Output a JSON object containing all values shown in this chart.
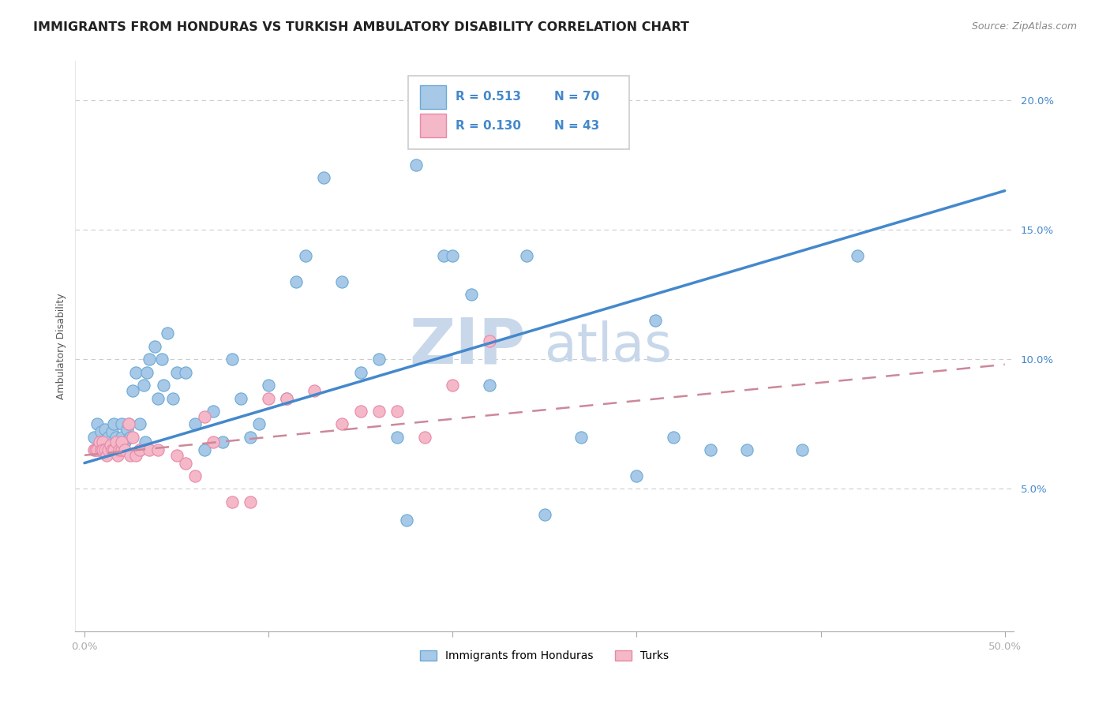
{
  "title": "IMMIGRANTS FROM HONDURAS VS TURKISH AMBULATORY DISABILITY CORRELATION CHART",
  "source": "Source: ZipAtlas.com",
  "ylabel": "Ambulatory Disability",
  "xlim": [
    -0.005,
    0.505
  ],
  "ylim": [
    -0.005,
    0.215
  ],
  "xticks": [
    0.0,
    0.1,
    0.2,
    0.3,
    0.4,
    0.5
  ],
  "xticklabels": [
    "0.0%",
    "",
    "",
    "",
    "",
    "50.0%"
  ],
  "yticks": [
    0.05,
    0.1,
    0.15,
    0.2
  ],
  "yticklabels": [
    "5.0%",
    "10.0%",
    "15.0%",
    "20.0%"
  ],
  "legend_r1": "R = 0.513",
  "legend_n1": "N = 70",
  "legend_r2": "R = 0.130",
  "legend_n2": "N = 43",
  "color_blue": "#a8c8e8",
  "color_blue_edge": "#6aaad4",
  "color_pink": "#f4b8c8",
  "color_pink_edge": "#e888a8",
  "color_blue_line": "#4488cc",
  "color_pink_line": "#cc8899",
  "color_tick_label": "#4488cc",
  "watermark": "ZIPatlas",
  "watermark_color": "#c8d8ea",
  "blue_scatter_x": [
    0.005,
    0.007,
    0.008,
    0.009,
    0.01,
    0.011,
    0.012,
    0.013,
    0.015,
    0.015,
    0.016,
    0.017,
    0.018,
    0.019,
    0.02,
    0.02,
    0.021,
    0.022,
    0.023,
    0.024,
    0.025,
    0.026,
    0.028,
    0.03,
    0.03,
    0.032,
    0.033,
    0.034,
    0.035,
    0.038,
    0.04,
    0.042,
    0.043,
    0.045,
    0.048,
    0.05,
    0.055,
    0.06,
    0.065,
    0.07,
    0.075,
    0.08,
    0.085,
    0.09,
    0.095,
    0.1,
    0.11,
    0.115,
    0.12,
    0.13,
    0.14,
    0.15,
    0.16,
    0.17,
    0.175,
    0.18,
    0.195,
    0.2,
    0.21,
    0.22,
    0.24,
    0.25,
    0.27,
    0.3,
    0.31,
    0.32,
    0.34,
    0.36,
    0.39,
    0.42
  ],
  "blue_scatter_y": [
    0.07,
    0.075,
    0.065,
    0.072,
    0.068,
    0.073,
    0.065,
    0.07,
    0.065,
    0.072,
    0.075,
    0.07,
    0.068,
    0.065,
    0.07,
    0.075,
    0.065,
    0.068,
    0.073,
    0.075,
    0.07,
    0.088,
    0.095,
    0.065,
    0.075,
    0.09,
    0.068,
    0.095,
    0.1,
    0.105,
    0.085,
    0.1,
    0.09,
    0.11,
    0.085,
    0.095,
    0.095,
    0.075,
    0.065,
    0.08,
    0.068,
    0.1,
    0.085,
    0.07,
    0.075,
    0.09,
    0.085,
    0.13,
    0.14,
    0.17,
    0.13,
    0.095,
    0.1,
    0.07,
    0.038,
    0.175,
    0.14,
    0.14,
    0.125,
    0.09,
    0.14,
    0.04,
    0.07,
    0.055,
    0.115,
    0.07,
    0.065,
    0.065,
    0.065,
    0.14
  ],
  "pink_scatter_x": [
    0.005,
    0.006,
    0.007,
    0.008,
    0.009,
    0.01,
    0.01,
    0.011,
    0.012,
    0.013,
    0.014,
    0.015,
    0.016,
    0.017,
    0.018,
    0.019,
    0.02,
    0.02,
    0.022,
    0.024,
    0.025,
    0.026,
    0.028,
    0.03,
    0.035,
    0.04,
    0.05,
    0.055,
    0.06,
    0.065,
    0.07,
    0.08,
    0.09,
    0.1,
    0.11,
    0.125,
    0.14,
    0.15,
    0.16,
    0.17,
    0.185,
    0.2,
    0.22
  ],
  "pink_scatter_y": [
    0.065,
    0.065,
    0.065,
    0.068,
    0.065,
    0.068,
    0.065,
    0.065,
    0.063,
    0.065,
    0.067,
    0.065,
    0.065,
    0.068,
    0.063,
    0.065,
    0.065,
    0.068,
    0.065,
    0.075,
    0.063,
    0.07,
    0.063,
    0.065,
    0.065,
    0.065,
    0.063,
    0.06,
    0.055,
    0.078,
    0.068,
    0.045,
    0.045,
    0.085,
    0.085,
    0.088,
    0.075,
    0.08,
    0.08,
    0.08,
    0.07,
    0.09,
    0.107
  ],
  "blue_line_x": [
    0.0,
    0.5
  ],
  "blue_line_y": [
    0.06,
    0.165
  ],
  "pink_line_x": [
    0.0,
    0.5
  ],
  "pink_line_y": [
    0.063,
    0.098
  ],
  "title_fontsize": 11.5,
  "axis_label_fontsize": 9,
  "tick_fontsize": 9.5,
  "source_fontsize": 9
}
